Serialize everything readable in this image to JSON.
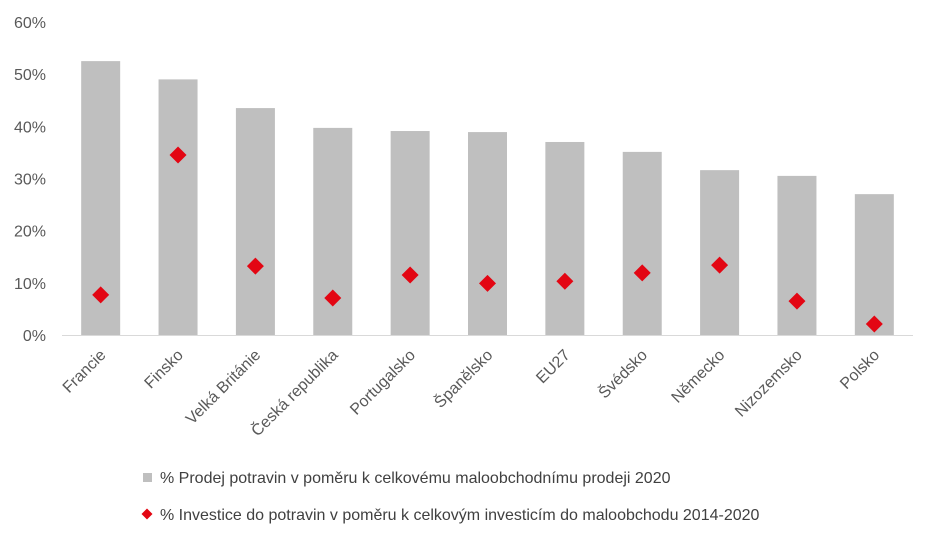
{
  "chart_data": {
    "type": "bar",
    "categories": [
      "Francie",
      "Finsko",
      "Velká Británie",
      "Česká republika",
      "Portugalsko",
      "Španělsko",
      "EU27",
      "Švédsko",
      "Německo",
      "Nizozemsko",
      "Polsko"
    ],
    "series": [
      {
        "name": "% Prodej potravin v poměru k celkovému maloobchodnímu prodeji 2020",
        "type": "bar",
        "color": "#bfbfbf",
        "values": [
          52.5,
          49.0,
          43.5,
          39.7,
          39.1,
          38.9,
          37.0,
          35.1,
          31.6,
          30.5,
          27.0
        ]
      },
      {
        "name": "% Investice do potravin v poměru k celkovým investicím do maloobchodu 2014-2020",
        "type": "scatter",
        "marker": "diamond",
        "color": "#e30613",
        "values": [
          7.7,
          34.5,
          13.2,
          7.1,
          11.5,
          9.9,
          10.3,
          11.9,
          13.4,
          6.5,
          2.1
        ]
      }
    ],
    "ylim": [
      0,
      60
    ],
    "yticks": [
      "0%",
      "10%",
      "20%",
      "30%",
      "40%",
      "50%",
      "60%"
    ],
    "ytick_values": [
      0,
      10,
      20,
      30,
      40,
      50,
      60
    ],
    "grid": false,
    "legend_position": "bottom"
  }
}
